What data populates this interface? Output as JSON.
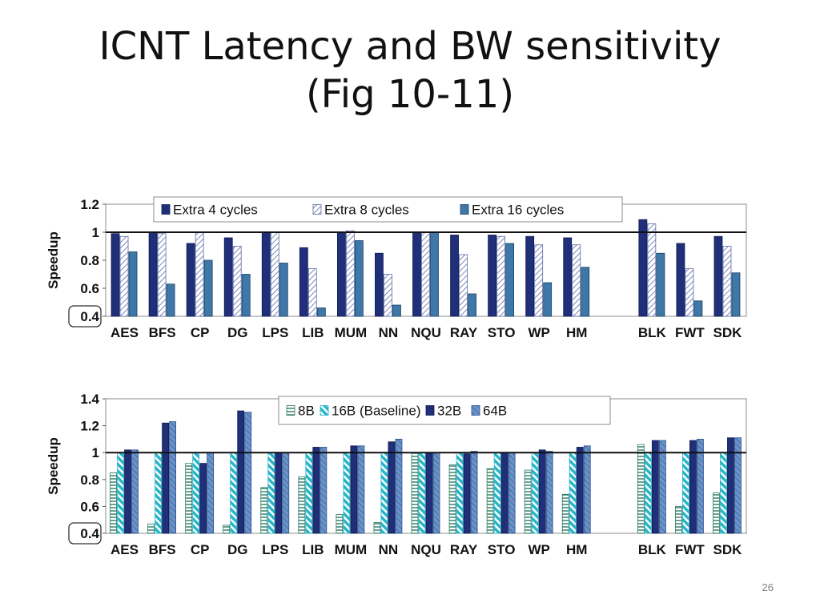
{
  "slide": {
    "title_line1": "ICNT Latency and BW sensitivity",
    "title_line2": "(Fig 10-11)",
    "page_number": "26"
  },
  "colors": {
    "dark_blue": "#1f2f7a",
    "hatch_blue": "#5b6aa8",
    "steel_blue": "#3d78a8",
    "teal": "#27b5c8",
    "light_blue": "#6a93c9",
    "grid_green": "#2d7b62"
  },
  "chart_data": [
    {
      "type": "bar",
      "ylabel": "Speedup",
      "yticks": [
        "1.2",
        "1",
        "0.8",
        "0.6",
        "0.4"
      ],
      "ylim": [
        0.4,
        1.2
      ],
      "baseline": 1,
      "grid": false,
      "legend_position": "top",
      "categories": [
        "AES",
        "BFS",
        "CP",
        "DG",
        "LPS",
        "LIB",
        "MUM",
        "NN",
        "NQU",
        "RAY",
        "STO",
        "WP",
        "HM",
        "BLK",
        "FWT",
        "SDK"
      ],
      "series": [
        {
          "name": "Extra 4 cycles",
          "style": "solid-dark",
          "values": [
            0.99,
            1.0,
            0.92,
            0.96,
            1.0,
            0.89,
            1.0,
            0.85,
            1.0,
            0.98,
            0.98,
            0.97,
            0.96,
            1.09,
            0.92,
            0.97
          ]
        },
        {
          "name": "Extra 8 cycles",
          "style": "diag-hatch",
          "values": [
            0.97,
            0.99,
            1.0,
            0.9,
            1.0,
            0.74,
            1.01,
            0.7,
            1.0,
            0.84,
            0.97,
            0.91,
            0.91,
            1.06,
            0.74,
            0.9
          ]
        },
        {
          "name": "Extra 16 cycles",
          "style": "solid-steel",
          "values": [
            0.86,
            0.63,
            0.8,
            0.7,
            0.78,
            0.46,
            0.94,
            0.48,
            1.0,
            0.56,
            0.92,
            0.64,
            0.75,
            0.85,
            0.51,
            0.71
          ]
        }
      ]
    },
    {
      "type": "bar",
      "ylabel": "Speedup",
      "yticks": [
        "1.4",
        "1.2",
        "1",
        "0.8",
        "0.6",
        "0.4"
      ],
      "ylim": [
        0.4,
        1.4
      ],
      "baseline": 1,
      "grid": false,
      "legend_position": "top",
      "categories": [
        "AES",
        "BFS",
        "CP",
        "DG",
        "LPS",
        "LIB",
        "MUM",
        "NN",
        "NQU",
        "RAY",
        "STO",
        "WP",
        "HM",
        "BLK",
        "FWT",
        "SDK"
      ],
      "series": [
        {
          "name": "8B",
          "style": "horiz-green",
          "values": [
            0.85,
            0.47,
            0.92,
            0.46,
            0.74,
            0.82,
            0.54,
            0.48,
            1.0,
            0.91,
            0.88,
            0.87,
            0.69,
            1.06,
            0.6,
            0.7
          ]
        },
        {
          "name": "16B (Baseline)",
          "style": "diag-teal",
          "values": [
            1.0,
            1.0,
            1.0,
            1.0,
            1.0,
            1.0,
            1.0,
            1.0,
            1.0,
            1.0,
            1.0,
            1.0,
            1.0,
            1.0,
            1.0,
            1.0
          ]
        },
        {
          "name": "32B",
          "style": "solid-dark",
          "values": [
            1.02,
            1.22,
            0.92,
            1.31,
            1.0,
            1.04,
            1.05,
            1.08,
            1.0,
            0.99,
            1.0,
            1.02,
            1.04,
            1.09,
            1.09,
            1.11
          ]
        },
        {
          "name": "64B",
          "style": "diag-light",
          "values": [
            1.02,
            1.23,
            1.0,
            1.3,
            1.0,
            1.04,
            1.05,
            1.1,
            1.0,
            1.01,
            1.0,
            1.01,
            1.05,
            1.09,
            1.1,
            1.11
          ]
        }
      ]
    }
  ]
}
